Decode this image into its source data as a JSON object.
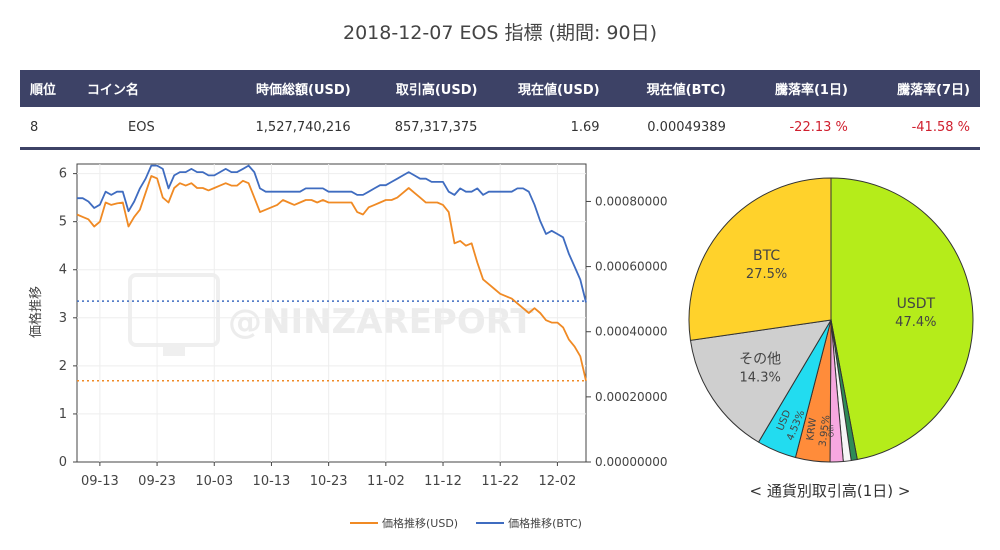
{
  "page": {
    "title": "2018-12-07 EOS 指標 (期間: 90日)"
  },
  "table": {
    "headers": [
      "順位",
      "コイン名",
      "時価総額(USD)",
      "取引高(USD)",
      "現在値(USD)",
      "現在値(BTC)",
      "騰落率(1日)",
      "騰落率(7日)"
    ],
    "row": {
      "rank": "8",
      "name": "EOS",
      "market_cap": "1,527,740,216",
      "volume": "857,317,375",
      "price_usd": "1.69",
      "price_btc": "0.00049389",
      "change_1d": "-22.13 %",
      "change_7d": "-41.58 %"
    }
  },
  "watermark": "@NINZAREPORT",
  "colors": {
    "usd": "#f08a24",
    "btc": "#3f6cc0",
    "header_bg": "#3d4266",
    "negative": "#d0202f"
  },
  "chart_data": [
    {
      "type": "line",
      "x": [
        "09-09",
        "09-10",
        "09-11",
        "09-12",
        "09-13",
        "09-14",
        "09-15",
        "09-16",
        "09-17",
        "09-18",
        "09-19",
        "09-20",
        "09-21",
        "09-22",
        "09-23",
        "09-24",
        "09-25",
        "09-26",
        "09-27",
        "09-28",
        "09-29",
        "09-30",
        "10-01",
        "10-02",
        "10-03",
        "10-04",
        "10-05",
        "10-06",
        "10-07",
        "10-08",
        "10-09",
        "10-10",
        "10-11",
        "10-12",
        "10-13",
        "10-14",
        "10-15",
        "10-16",
        "10-17",
        "10-18",
        "10-19",
        "10-20",
        "10-21",
        "10-22",
        "10-23",
        "10-24",
        "10-25",
        "10-26",
        "10-27",
        "10-28",
        "10-29",
        "10-30",
        "10-31",
        "11-01",
        "11-02",
        "11-03",
        "11-04",
        "11-05",
        "11-06",
        "11-07",
        "11-08",
        "11-09",
        "11-10",
        "11-11",
        "11-12",
        "11-13",
        "11-14",
        "11-15",
        "11-16",
        "11-17",
        "11-18",
        "11-19",
        "11-20",
        "11-21",
        "11-22",
        "11-23",
        "11-24",
        "11-25",
        "11-26",
        "11-27",
        "11-28",
        "11-29",
        "11-30",
        "12-01",
        "12-02",
        "12-03",
        "12-04",
        "12-05",
        "12-06",
        "12-07"
      ],
      "xticks": [
        "09-13",
        "09-23",
        "10-03",
        "10-13",
        "10-23",
        "11-02",
        "11-12",
        "11-22",
        "12-02"
      ],
      "ylabel": "価格推移",
      "ylim": [
        0,
        6.2
      ],
      "yticks": [
        0,
        1,
        2,
        3,
        4,
        5,
        6
      ],
      "y2ticks": [
        "0.00000000",
        "0.00020000",
        "0.00040000",
        "0.00060000",
        "0.00080000"
      ],
      "series": [
        {
          "name": "価格推移(USD)",
          "axis": "y",
          "color": "#f08a24",
          "values": [
            5.15,
            5.1,
            5.05,
            4.9,
            5.0,
            5.4,
            5.35,
            5.38,
            5.4,
            4.9,
            5.1,
            5.25,
            5.6,
            5.95,
            5.9,
            5.5,
            5.4,
            5.7,
            5.8,
            5.75,
            5.8,
            5.7,
            5.7,
            5.65,
            5.7,
            5.75,
            5.8,
            5.75,
            5.75,
            5.85,
            5.8,
            5.5,
            5.2,
            5.25,
            5.3,
            5.35,
            5.45,
            5.4,
            5.35,
            5.4,
            5.45,
            5.45,
            5.4,
            5.45,
            5.4,
            5.4,
            5.4,
            5.4,
            5.4,
            5.2,
            5.15,
            5.3,
            5.35,
            5.4,
            5.45,
            5.45,
            5.5,
            5.6,
            5.7,
            5.6,
            5.5,
            5.4,
            5.4,
            5.4,
            5.35,
            5.2,
            4.55,
            4.6,
            4.5,
            4.55,
            4.15,
            3.8,
            3.7,
            3.6,
            3.5,
            3.45,
            3.4,
            3.3,
            3.2,
            3.1,
            3.2,
            3.1,
            2.95,
            2.9,
            2.9,
            2.8,
            2.55,
            2.4,
            2.2,
            1.69
          ]
        },
        {
          "name": "価格推移(BTC)",
          "axis": "y2",
          "color": "#3f6cc0",
          "values": [
            0.00081,
            0.00081,
            0.0008,
            0.00078,
            0.00079,
            0.00083,
            0.00082,
            0.00083,
            0.00083,
            0.00077,
            0.0008,
            0.00084,
            0.00087,
            0.00091,
            0.00091,
            0.0009,
            0.00084,
            0.00088,
            0.00089,
            0.00089,
            0.0009,
            0.00089,
            0.00089,
            0.00088,
            0.00088,
            0.00089,
            0.0009,
            0.00089,
            0.00089,
            0.0009,
            0.00091,
            0.00089,
            0.00084,
            0.00083,
            0.00083,
            0.00083,
            0.00083,
            0.00083,
            0.00083,
            0.00083,
            0.00084,
            0.00084,
            0.00084,
            0.00084,
            0.00083,
            0.00083,
            0.00083,
            0.00083,
            0.00083,
            0.00082,
            0.00082,
            0.00083,
            0.00084,
            0.00085,
            0.00085,
            0.00086,
            0.00087,
            0.00088,
            0.00089,
            0.00088,
            0.00087,
            0.00087,
            0.00086,
            0.00086,
            0.00086,
            0.00083,
            0.00082,
            0.00084,
            0.00083,
            0.00083,
            0.00084,
            0.00082,
            0.00083,
            0.00083,
            0.00083,
            0.00083,
            0.00083,
            0.00084,
            0.00084,
            0.00083,
            0.00079,
            0.00074,
            0.0007,
            0.00071,
            0.0007,
            0.00069,
            0.00064,
            0.0006,
            0.00056,
            0.00049
          ]
        }
      ],
      "reference_lines": [
        {
          "axis": "y",
          "value": 1.69,
          "color": "#f08a24",
          "style": "dotted"
        },
        {
          "axis": "y2",
          "value": 0.00049389,
          "color": "#3f6cc0",
          "style": "dotted"
        }
      ],
      "legend": "bottom"
    },
    {
      "type": "pie",
      "title": "< 通貨別取引高(1日) >",
      "slices": [
        {
          "label": "USDT",
          "value": 47.4,
          "display": "47.4%",
          "color": "#b5ec1a"
        },
        {
          "label": "",
          "value": 0.7,
          "display": "",
          "color": "#2e8b57"
        },
        {
          "label": "",
          "value": 0.9,
          "display": "",
          "color": "#f6f6f6"
        },
        {
          "label": "Oth",
          "value": 1.5,
          "display": "",
          "color": "#f7a8e0"
        },
        {
          "label": "KRW",
          "value": 3.95,
          "display": "3.95%",
          "color": "#ff8c3a"
        },
        {
          "label": "USD",
          "value": 4.53,
          "display": "4.53%",
          "color": "#22dcf0"
        },
        {
          "label": "その他",
          "value": 14.3,
          "display": "14.3%",
          "color": "#cfcfcf"
        },
        {
          "label": "BTC",
          "value": 27.5,
          "display": "27.5%",
          "color": "#ffd22b"
        }
      ]
    }
  ]
}
